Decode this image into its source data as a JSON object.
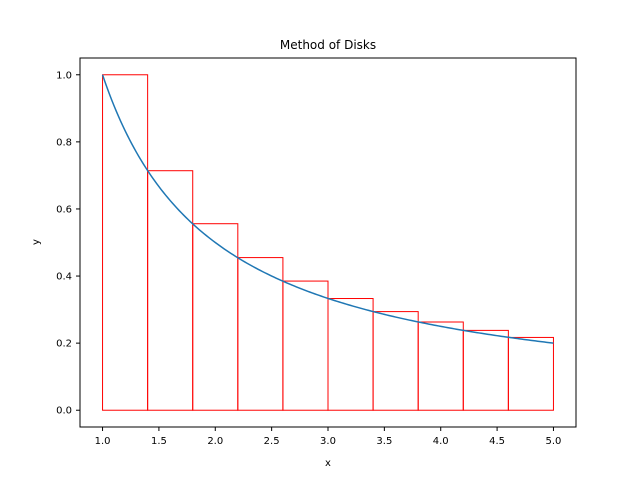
{
  "chart_data": {
    "type": "line",
    "title": "Method of Disks",
    "xlabel": "x",
    "ylabel": "y",
    "xlim": [
      0.8,
      5.2
    ],
    "ylim": [
      -0.05,
      1.05
    ],
    "xticks": [
      1.0,
      1.5,
      2.0,
      2.5,
      3.0,
      3.5,
      4.0,
      4.5,
      5.0
    ],
    "xtick_labels": [
      "1.0",
      "1.5",
      "2.0",
      "2.5",
      "3.0",
      "3.5",
      "4.0",
      "4.5",
      "5.0"
    ],
    "yticks": [
      0.0,
      0.2,
      0.4,
      0.6,
      0.8,
      1.0
    ],
    "ytick_labels": [
      "0.0",
      "0.2",
      "0.4",
      "0.6",
      "0.8",
      "1.0"
    ],
    "grid": false,
    "curve": {
      "function": "y = 1/x",
      "color": "#1f77b4",
      "x_range": [
        1.0,
        5.0
      ]
    },
    "rectangles": {
      "color": "#ff0000",
      "width": 0.4,
      "x_left": [
        1.0,
        1.4,
        1.8,
        2.2,
        2.6,
        3.0,
        3.4,
        3.8,
        4.2,
        4.6
      ],
      "heights": [
        1.0,
        0.714,
        0.556,
        0.455,
        0.385,
        0.333,
        0.294,
        0.263,
        0.238,
        0.217
      ]
    }
  }
}
